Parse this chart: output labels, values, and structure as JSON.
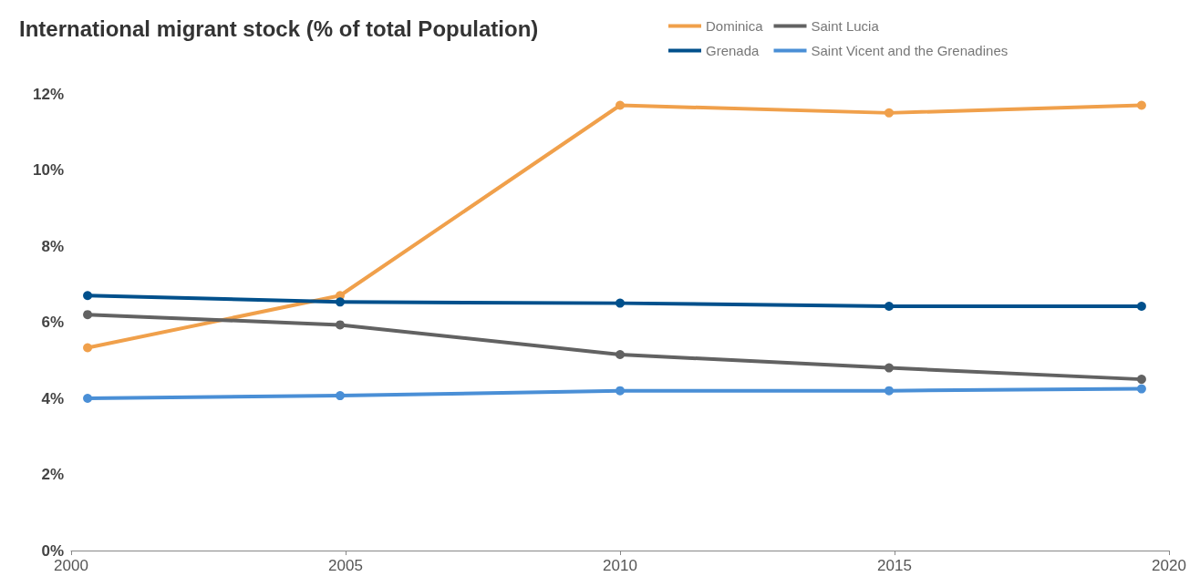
{
  "chart_data": {
    "type": "line",
    "title": "International migrant stock (% of total Population)",
    "x": [
      2000.3,
      2004.9,
      2010,
      2014.9,
      2019.5
    ],
    "series": [
      {
        "name": "Dominica",
        "color": "#f0a04b",
        "values": [
          5.33,
          6.7,
          11.7,
          11.5,
          11.7
        ]
      },
      {
        "name": "Grenada",
        "color": "#00508c",
        "values": [
          6.7,
          6.53,
          6.5,
          6.42,
          6.42
        ]
      },
      {
        "name": "Saint Lucia",
        "color": "#626262",
        "values": [
          6.2,
          5.93,
          5.15,
          4.8,
          4.5
        ]
      },
      {
        "name": "Saint Vicent and the Grenadines",
        "color": "#4a8fd6",
        "values": [
          4.0,
          4.07,
          4.2,
          4.2,
          4.25
        ]
      }
    ],
    "xlim": [
      2000,
      2020
    ],
    "xticks": [
      2000,
      2005,
      2010,
      2015,
      2020
    ],
    "ylim": [
      0,
      12
    ],
    "yticks": [
      {
        "value": 0,
        "label": "0%"
      },
      {
        "value": 2,
        "label": "2%"
      },
      {
        "value": 4,
        "label": "4%"
      },
      {
        "value": 6,
        "label": "6%"
      },
      {
        "value": 8,
        "label": "8%"
      },
      {
        "value": 10,
        "label": "10%"
      },
      {
        "value": 12,
        "label": "12%"
      }
    ],
    "grid": false,
    "legend": "top right",
    "marker": "circle",
    "line_style": "solid"
  }
}
